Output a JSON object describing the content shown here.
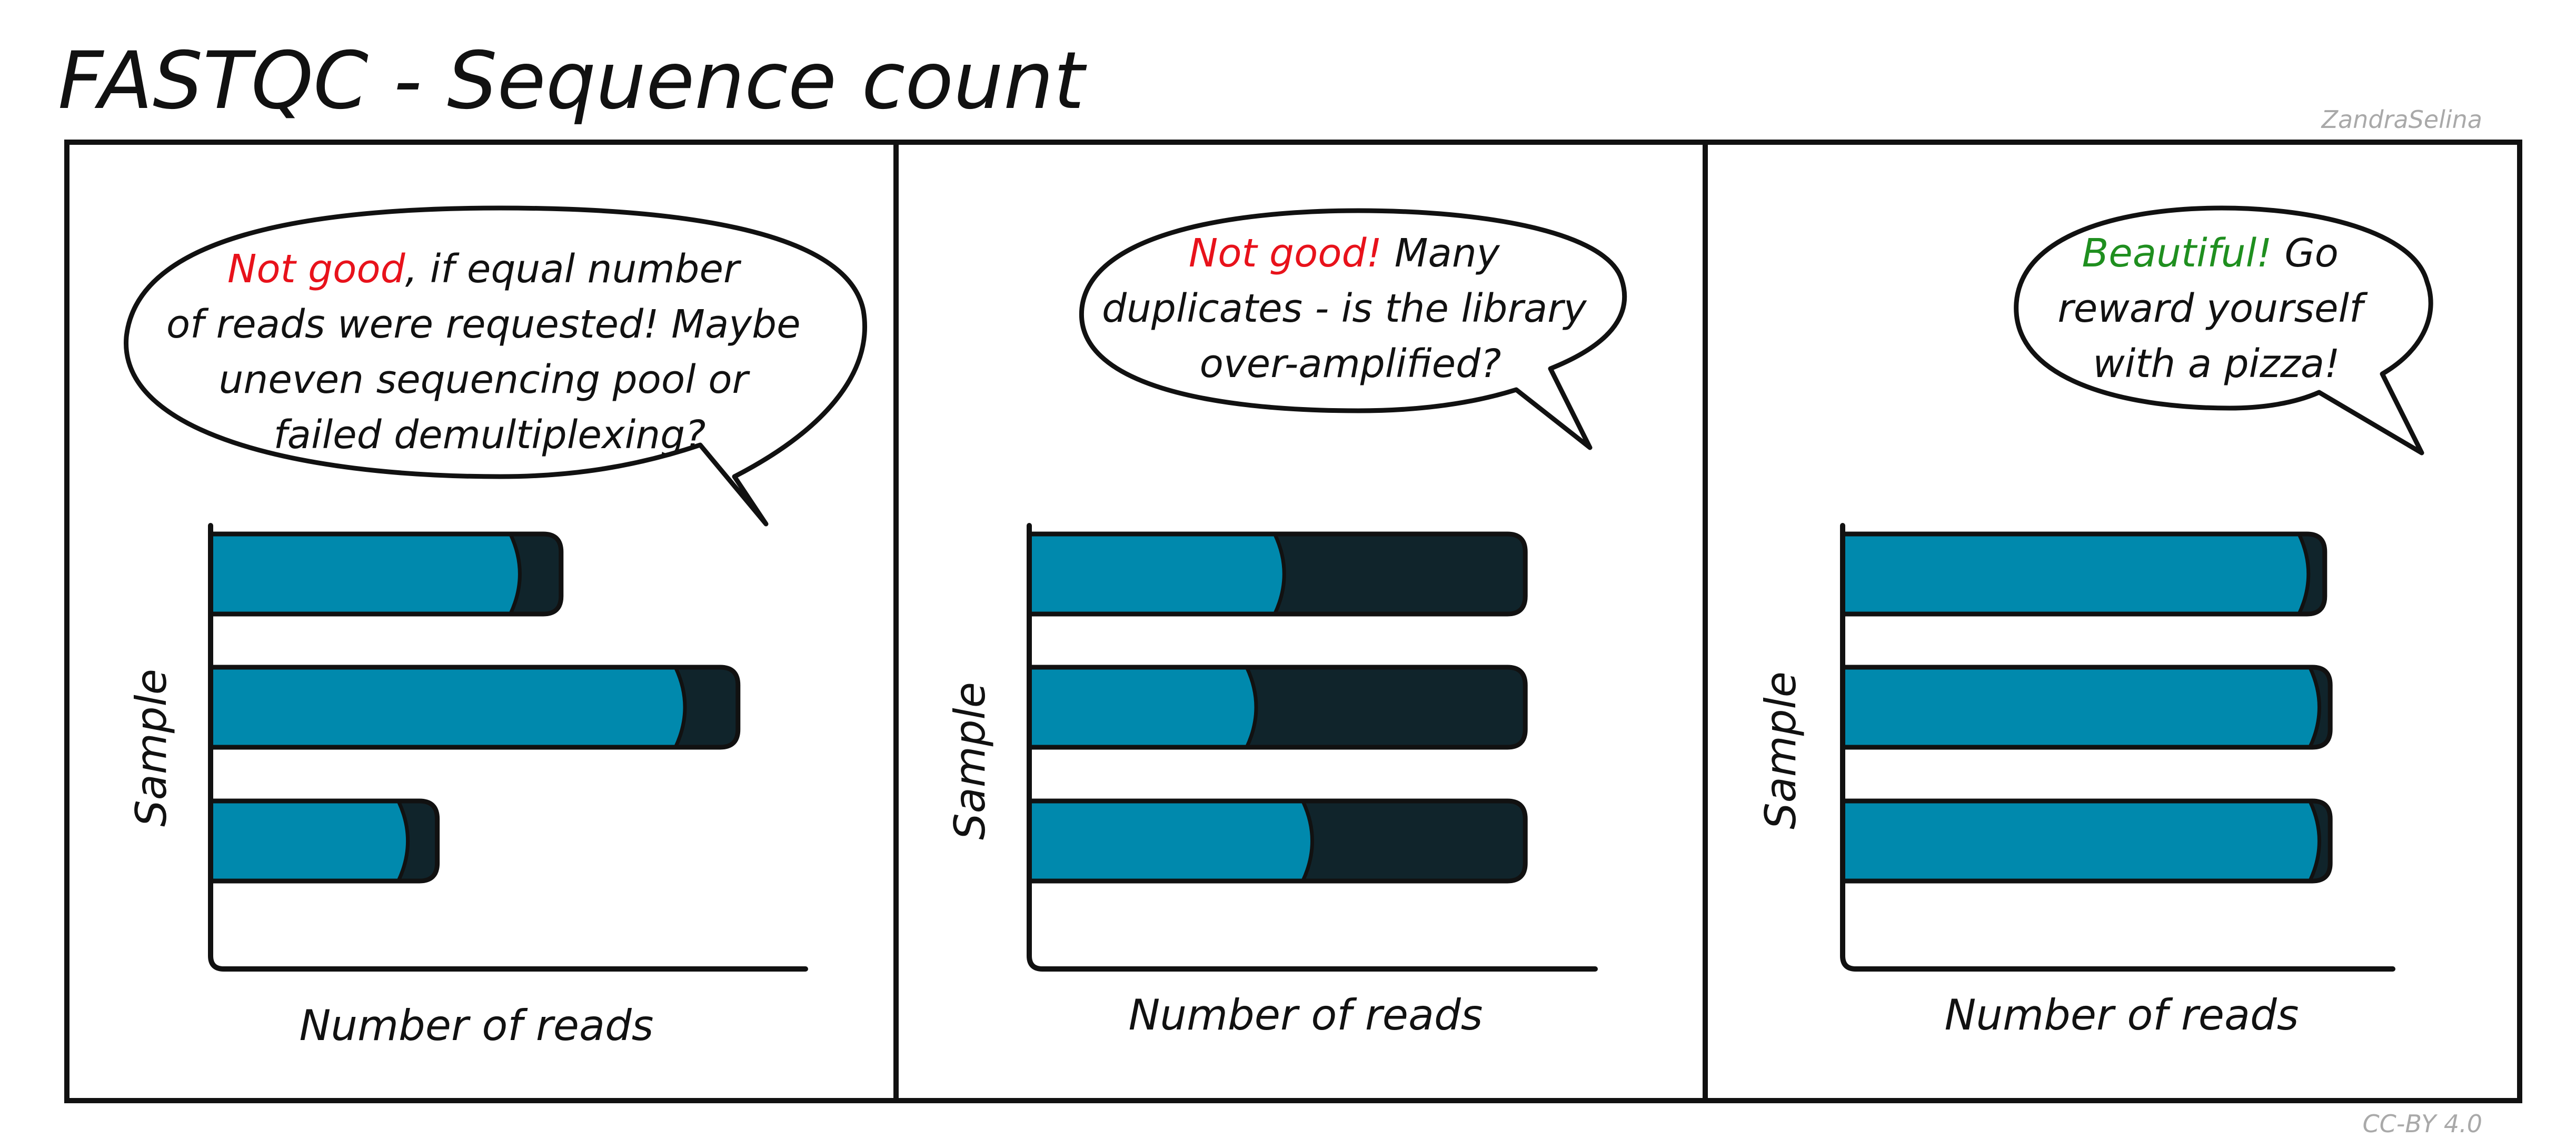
{
  "header": {
    "title": "FASTQC - Sequence count",
    "author": "ZandraSelina",
    "license": "CC-BY 4.0"
  },
  "colors": {
    "unique": "#0089ad",
    "duplicate": "#10242b",
    "outline": "#111111",
    "warning": "#e8121b",
    "positive": "#1f8f1f"
  },
  "panels": [
    {
      "bubble_lines": [
        [
          {
            "text": "Not good",
            "tone": "warning"
          },
          {
            "text": ", if equal number",
            "tone": "normal"
          }
        ],
        [
          {
            "text": "of reads were requested! Maybe",
            "tone": "normal"
          }
        ],
        [
          {
            "text": "uneven sequencing pool or",
            "tone": "normal"
          }
        ],
        [
          {
            "text": "failed demultiplexing?",
            "tone": "normal"
          }
        ]
      ]
    },
    {
      "bubble_lines": [
        [
          {
            "text": "Not good!",
            "tone": "warning"
          },
          {
            "text": " Many",
            "tone": "normal"
          }
        ],
        [
          {
            "text": "duplicates - is the library",
            "tone": "normal"
          }
        ],
        [
          {
            "text": "over-amplified?",
            "tone": "normal"
          }
        ]
      ]
    },
    {
      "bubble_lines": [
        [
          {
            "text": "Beautiful!",
            "tone": "positive"
          },
          {
            "text": " Go",
            "tone": "normal"
          }
        ],
        [
          {
            "text": "reward yourself",
            "tone": "normal"
          }
        ],
        [
          {
            "text": "with a pizza!",
            "tone": "normal"
          }
        ]
      ]
    }
  ],
  "chart_data": [
    {
      "type": "bar",
      "orientation": "horizontal",
      "stacked": true,
      "xlabel": "Number of reads",
      "ylabel": "Sample",
      "xlim": [
        0,
        100
      ],
      "categories": [
        "",
        "",
        ""
      ],
      "series": [
        {
          "values": [
            52,
            80,
            33
          ],
          "color": "#0089ad"
        },
        {
          "values": [
            7,
            9,
            5
          ],
          "color": "#10242b"
        }
      ]
    },
    {
      "type": "bar",
      "orientation": "horizontal",
      "stacked": true,
      "xlabel": "Number of reads",
      "ylabel": "Sample",
      "xlim": [
        0,
        100
      ],
      "categories": [
        "",
        "",
        ""
      ],
      "series": [
        {
          "values": [
            45,
            40,
            50
          ],
          "color": "#0089ad"
        },
        {
          "values": [
            43,
            48,
            38
          ],
          "color": "#10242b"
        }
      ]
    },
    {
      "type": "bar",
      "orientation": "horizontal",
      "stacked": true,
      "xlabel": "Number of reads",
      "ylabel": "Sample",
      "xlim": [
        0,
        100
      ],
      "categories": [
        "",
        "",
        ""
      ],
      "series": [
        {
          "values": [
            85,
            87,
            87
          ],
          "color": "#0089ad"
        },
        {
          "values": [
            3,
            2,
            2
          ],
          "color": "#10242b"
        }
      ]
    }
  ]
}
